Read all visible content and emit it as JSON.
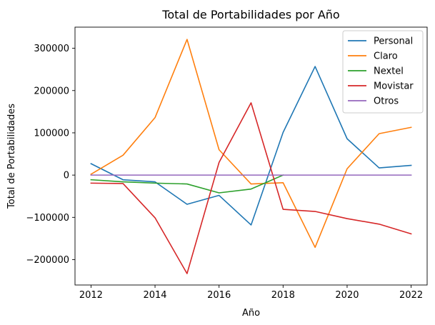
{
  "chart_data": {
    "type": "line",
    "title": "Total de Portabilidades por Año",
    "xlabel": "Año",
    "ylabel": "Total de Portabilidades",
    "x": [
      2012,
      2013,
      2014,
      2015,
      2016,
      2017,
      2018,
      2019,
      2020,
      2021,
      2022
    ],
    "xlim": [
      2011.5,
      2022.5
    ],
    "ylim": [
      -260000,
      350000
    ],
    "xticks": [
      2012,
      2014,
      2016,
      2018,
      2020,
      2022
    ],
    "yticks": [
      -200000,
      -100000,
      0,
      100000,
      200000,
      300000
    ],
    "ytick_labels": [
      "−200000",
      "−100000",
      "0",
      "100000",
      "200000",
      "300000"
    ],
    "grid": false,
    "legend_position": "top-right",
    "series": [
      {
        "name": "Personal",
        "color": "#1f77b4",
        "values": [
          27000,
          -11000,
          -16000,
          -69000,
          -48000,
          -118000,
          101000,
          257000,
          86000,
          17000,
          23000
        ]
      },
      {
        "name": "Claro",
        "color": "#ff7f0e",
        "values": [
          2000,
          47000,
          136000,
          321000,
          60000,
          -21000,
          -18000,
          -171000,
          15000,
          98000,
          113000
        ]
      },
      {
        "name": "Nextel",
        "color": "#2ca02c",
        "values": [
          -11000,
          -16000,
          -19000,
          -21000,
          -42000,
          -33000,
          0,
          null,
          null,
          null,
          null
        ]
      },
      {
        "name": "Movistar",
        "color": "#d62728",
        "values": [
          -19000,
          -20000,
          -101000,
          -233000,
          30000,
          171000,
          -81000,
          -86000,
          -103000,
          -116000,
          -139000
        ]
      },
      {
        "name": "Otros",
        "color": "#9467bd",
        "values": [
          0,
          0,
          0,
          0,
          0,
          0,
          0,
          0,
          0,
          0,
          0
        ]
      }
    ]
  }
}
